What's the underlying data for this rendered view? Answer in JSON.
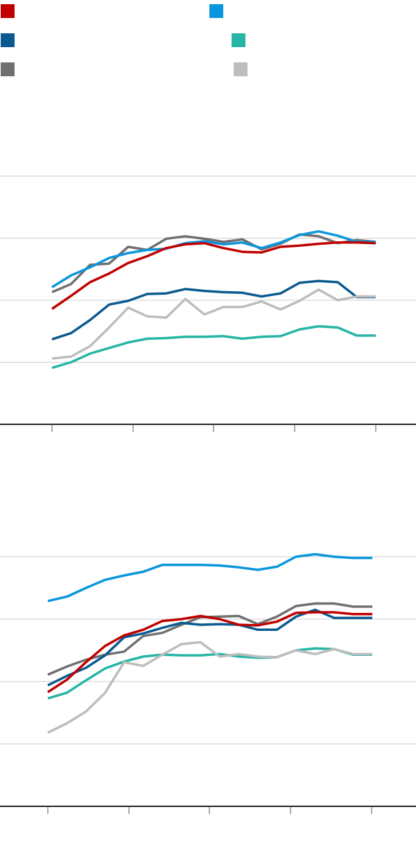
{
  "legend": [
    {
      "name": "",
      "color": "#c00000"
    },
    {
      "name": "",
      "color": "#0a96dc"
    },
    {
      "name": "",
      "color": "#0b5a8f"
    },
    {
      "name": "",
      "color": "#26b5a5"
    },
    {
      "name": "",
      "color": "#707070"
    },
    {
      "name": "",
      "color": "#bdbdbd"
    }
  ],
  "chart_data": [
    {
      "type": "line",
      "title": "",
      "xlabel": "",
      "ylabel": "",
      "x": [
        1,
        2,
        3,
        4,
        5,
        6,
        7,
        8,
        9,
        10,
        11,
        12,
        13,
        14,
        15,
        16,
        17,
        18
      ],
      "ylim": [
        0,
        4
      ],
      "grid": true,
      "series": [
        {
          "color": "#707070",
          "values": [
            2.13,
            2.26,
            2.57,
            2.59,
            2.86,
            2.81,
            2.99,
            3.03,
            2.99,
            2.94,
            2.98,
            2.82,
            2.91,
            3.06,
            3.03,
            2.92,
            2.97,
            2.94
          ]
        },
        {
          "color": "#c00000",
          "values": [
            1.86,
            2.07,
            2.29,
            2.43,
            2.6,
            2.71,
            2.84,
            2.9,
            2.92,
            2.84,
            2.78,
            2.77,
            2.86,
            2.88,
            2.91,
            2.93,
            2.93,
            2.92
          ]
        },
        {
          "color": "#0a96dc",
          "values": [
            2.21,
            2.4,
            2.53,
            2.68,
            2.76,
            2.81,
            2.83,
            2.92,
            2.95,
            2.9,
            2.93,
            2.84,
            2.93,
            3.05,
            3.11,
            3.04,
            2.94,
            2.94
          ]
        },
        {
          "color": "#0b5a8f",
          "values": [
            1.37,
            1.47,
            1.68,
            1.93,
            1.99,
            2.1,
            2.11,
            2.18,
            2.15,
            2.13,
            2.12,
            2.06,
            2.11,
            2.28,
            2.31,
            2.29,
            2.05,
            2.05
          ]
        },
        {
          "color": "#bdbdbd",
          "values": [
            1.06,
            1.09,
            1.26,
            1.56,
            1.88,
            1.74,
            1.72,
            2.02,
            1.77,
            1.89,
            1.89,
            1.98,
            1.85,
            1.99,
            2.17,
            2.0,
            2.06,
            2.06
          ]
        },
        {
          "color": "#26b5a5",
          "values": [
            0.91,
            1.0,
            1.14,
            1.23,
            1.32,
            1.38,
            1.39,
            1.41,
            1.41,
            1.42,
            1.38,
            1.41,
            1.42,
            1.53,
            1.58,
            1.56,
            1.43,
            1.43
          ]
        }
      ]
    },
    {
      "type": "line",
      "title": "",
      "xlabel": "",
      "ylabel": "",
      "x": [
        1,
        2,
        3,
        4,
        5,
        6,
        7,
        8,
        9,
        10,
        11,
        12,
        13,
        14,
        15,
        16,
        17,
        18
      ],
      "ylim": [
        0,
        4
      ],
      "grid": true,
      "series": [
        {
          "color": "#707070",
          "values": [
            2.11,
            2.24,
            2.35,
            2.43,
            2.48,
            2.73,
            2.78,
            2.91,
            3.03,
            3.04,
            3.05,
            2.92,
            3.04,
            3.21,
            3.25,
            3.25,
            3.2,
            3.2
          ]
        },
        {
          "color": "#c00000",
          "values": [
            1.83,
            2.03,
            2.31,
            2.57,
            2.74,
            2.83,
            2.97,
            3.0,
            3.05,
            3.0,
            2.91,
            2.9,
            2.96,
            3.1,
            3.11,
            3.11,
            3.08,
            3.08
          ]
        },
        {
          "color": "#0a96dc",
          "values": [
            3.29,
            3.36,
            3.5,
            3.63,
            3.7,
            3.76,
            3.87,
            3.87,
            3.87,
            3.86,
            3.83,
            3.79,
            3.84,
            4.0,
            4.04,
            4.0,
            3.98,
            3.98
          ]
        },
        {
          "color": "#0b5a8f",
          "values": [
            1.94,
            2.09,
            2.22,
            2.42,
            2.71,
            2.77,
            2.86,
            2.94,
            2.91,
            2.92,
            2.91,
            2.83,
            2.83,
            3.04,
            3.15,
            3.02,
            3.02,
            3.02
          ]
        },
        {
          "color": "#bdbdbd",
          "values": [
            1.18,
            1.33,
            1.52,
            1.82,
            2.31,
            2.25,
            2.43,
            2.6,
            2.63,
            2.4,
            2.44,
            2.4,
            2.39,
            2.5,
            2.44,
            2.52,
            2.44,
            2.44
          ]
        },
        {
          "color": "#26b5a5",
          "values": [
            1.73,
            1.82,
            2.02,
            2.21,
            2.32,
            2.4,
            2.43,
            2.42,
            2.42,
            2.44,
            2.4,
            2.38,
            2.39,
            2.5,
            2.53,
            2.52,
            2.43,
            2.43
          ]
        }
      ]
    }
  ]
}
